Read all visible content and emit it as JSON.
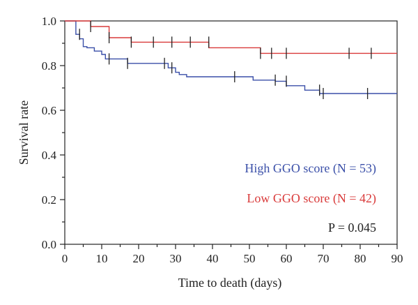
{
  "chart_data": {
    "type": "line",
    "title": "",
    "xlabel": "Time to death (days)",
    "ylabel": "Survival rate",
    "xlim": [
      0,
      90
    ],
    "ylim": [
      0,
      1.0
    ],
    "xticks": [
      "0",
      "10",
      "20",
      "30",
      "40",
      "50",
      "60",
      "70",
      "80",
      "90"
    ],
    "yticks": [
      "0.0",
      "0.2",
      "0.4",
      "0.6",
      "0.8",
      "1.0"
    ],
    "grid": false,
    "legend_placement": "bottom-right",
    "series": [
      {
        "name": "High GGO score (N = 53)",
        "color": "#3a4fa8",
        "steps": [
          {
            "x": 0,
            "y": 1.0
          },
          {
            "x": 3,
            "y": 0.94
          },
          {
            "x": 4,
            "y": 0.92
          },
          {
            "x": 5,
            "y": 0.885
          },
          {
            "x": 6,
            "y": 0.88
          },
          {
            "x": 8,
            "y": 0.865
          },
          {
            "x": 10,
            "y": 0.85
          },
          {
            "x": 11,
            "y": 0.83
          },
          {
            "x": 17,
            "y": 0.81
          },
          {
            "x": 28,
            "y": 0.79
          },
          {
            "x": 30,
            "y": 0.77
          },
          {
            "x": 31,
            "y": 0.76
          },
          {
            "x": 33,
            "y": 0.75
          },
          {
            "x": 51,
            "y": 0.735
          },
          {
            "x": 57,
            "y": 0.73
          },
          {
            "x": 60,
            "y": 0.71
          },
          {
            "x": 65,
            "y": 0.69
          },
          {
            "x": 69,
            "y": 0.675
          },
          {
            "x": 90,
            "y": 0.675
          }
        ],
        "censored": [
          {
            "x": 4,
            "y": 0.94
          },
          {
            "x": 12,
            "y": 0.83
          },
          {
            "x": 17,
            "y": 0.81
          },
          {
            "x": 27,
            "y": 0.81
          },
          {
            "x": 29,
            "y": 0.79
          },
          {
            "x": 46,
            "y": 0.75
          },
          {
            "x": 57,
            "y": 0.735
          },
          {
            "x": 60,
            "y": 0.73
          },
          {
            "x": 69,
            "y": 0.69
          },
          {
            "x": 70,
            "y": 0.675
          },
          {
            "x": 82,
            "y": 0.675
          }
        ]
      },
      {
        "name": "Low GGO score (N = 42)",
        "color": "#d93a3a",
        "steps": [
          {
            "x": 0,
            "y": 1.0
          },
          {
            "x": 7,
            "y": 0.975
          },
          {
            "x": 12,
            "y": 0.925
          },
          {
            "x": 18,
            "y": 0.905
          },
          {
            "x": 39,
            "y": 0.88
          },
          {
            "x": 53,
            "y": 0.855
          },
          {
            "x": 90,
            "y": 0.855
          }
        ],
        "censored": [
          {
            "x": 7,
            "y": 0.975
          },
          {
            "x": 12,
            "y": 0.925
          },
          {
            "x": 18,
            "y": 0.905
          },
          {
            "x": 24,
            "y": 0.905
          },
          {
            "x": 29,
            "y": 0.905
          },
          {
            "x": 34,
            "y": 0.905
          },
          {
            "x": 39,
            "y": 0.905
          },
          {
            "x": 53,
            "y": 0.855
          },
          {
            "x": 56,
            "y": 0.855
          },
          {
            "x": 60,
            "y": 0.855
          },
          {
            "x": 77,
            "y": 0.855
          },
          {
            "x": 83,
            "y": 0.855
          }
        ]
      }
    ],
    "annotation": "P = 0.045"
  }
}
